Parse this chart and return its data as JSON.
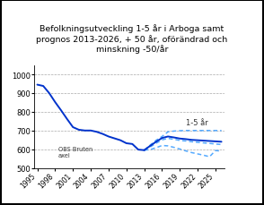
{
  "title": "Befolkningsutveckling 1-5 år i Arboga samt\nprognos 2013-2026, + 50 år, oförändrad och\nminskning -50/år",
  "title_fontsize": 6.8,
  "ylim": [
    500,
    1050
  ],
  "yticks": [
    500,
    600,
    700,
    800,
    900,
    1000
  ],
  "obs_text": "OBS Bruten\naxel",
  "legend_text": "1-5 år",
  "historical_years": [
    1995,
    1996,
    1997,
    1998,
    1999,
    2000,
    2001,
    2002,
    2003,
    2004,
    2005,
    2006,
    2007,
    2008,
    2009,
    2010,
    2011,
    2012,
    2013
  ],
  "historical_values": [
    945,
    938,
    900,
    852,
    808,
    762,
    718,
    704,
    700,
    700,
    693,
    682,
    668,
    658,
    648,
    632,
    628,
    598,
    595
  ],
  "post2013_years": [
    2013,
    2014,
    2015,
    2016,
    2017,
    2018,
    2019,
    2020,
    2021,
    2022,
    2023,
    2024,
    2025,
    2026
  ],
  "post2013_values": [
    595,
    618,
    640,
    660,
    668,
    663,
    657,
    654,
    650,
    648,
    646,
    644,
    642,
    640
  ],
  "prog_plus50_years": [
    2013,
    2014,
    2015,
    2016,
    2017,
    2018,
    2019,
    2020,
    2021,
    2022,
    2023,
    2024,
    2025,
    2026
  ],
  "prog_plus50_values": [
    595,
    622,
    648,
    668,
    693,
    697,
    699,
    700,
    700,
    700,
    700,
    700,
    700,
    700
  ],
  "prog_unchanged_years": [
    2013,
    2014,
    2015,
    2016,
    2017,
    2018,
    2019,
    2020,
    2021,
    2022,
    2023,
    2024,
    2025,
    2026
  ],
  "prog_unchanged_values": [
    595,
    612,
    632,
    650,
    658,
    653,
    647,
    644,
    640,
    637,
    634,
    631,
    628,
    625
  ],
  "prog_minus50_years": [
    2013,
    2014,
    2015,
    2016,
    2017,
    2018,
    2019,
    2020,
    2021,
    2022,
    2023,
    2024,
    2025,
    2026
  ],
  "prog_minus50_values": [
    595,
    598,
    608,
    620,
    618,
    610,
    601,
    591,
    582,
    575,
    568,
    560,
    593,
    590
  ],
  "xtick_years": [
    1995,
    1998,
    2001,
    2004,
    2007,
    2010,
    2013,
    2016,
    2019,
    2022,
    2025
  ],
  "line_color_historical": "#0033cc",
  "line_color_prog": "#55aaff",
  "background_color": "#ffffff",
  "grid_color": "#aaaaaa",
  "border_color": "#000000",
  "xlim": [
    1994.5,
    2026.5
  ]
}
